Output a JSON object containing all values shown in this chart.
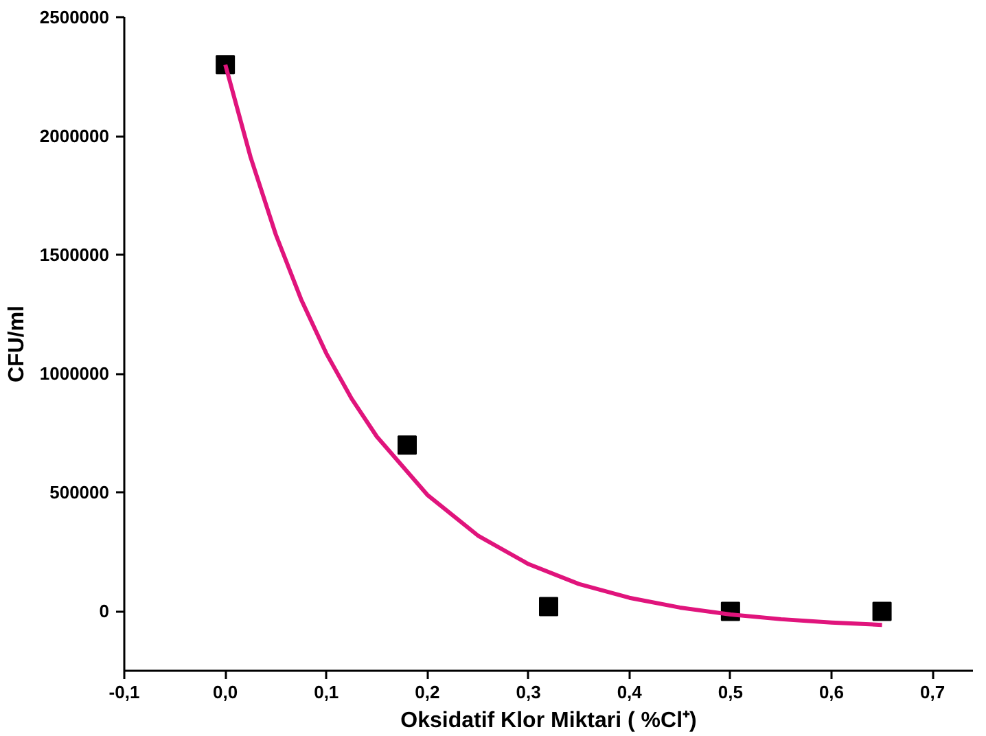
{
  "chart_data": {
    "type": "scatter",
    "xlabel": "Oksidatif Klor Miktari ( %Cl⁺)",
    "ylabel": "CFU/ml",
    "xlim": [
      -0.1,
      0.74
    ],
    "ylim": [
      -250000,
      2500000
    ],
    "xticks": [
      {
        "value": -0.1,
        "label": "-0,1"
      },
      {
        "value": 0.0,
        "label": "0,0"
      },
      {
        "value": 0.1,
        "label": "0,1"
      },
      {
        "value": 0.2,
        "label": "0,2"
      },
      {
        "value": 0.3,
        "label": "0,3"
      },
      {
        "value": 0.4,
        "label": "0,4"
      },
      {
        "value": 0.5,
        "label": "0,5"
      },
      {
        "value": 0.6,
        "label": "0,6"
      },
      {
        "value": 0.7,
        "label": "0,7"
      }
    ],
    "yticks": [
      0,
      500000,
      1000000,
      1500000,
      2000000,
      2500000
    ],
    "grid": false,
    "series": [
      {
        "marker": "square",
        "color": "#000000",
        "x": [
          0.0,
          0.18,
          0.32,
          0.5,
          0.65
        ],
        "values": [
          2300000,
          700000,
          20000,
          0,
          0
        ]
      },
      {
        "type": "line",
        "marker": "none",
        "line_style": "solid",
        "color": "#e0147c",
        "x": [
          0,
          0.025,
          0.05,
          0.075,
          0.1,
          0.125,
          0.15,
          0.2,
          0.25,
          0.3,
          0.35,
          0.4,
          0.45,
          0.5,
          0.55,
          0.6,
          0.65
        ],
        "values": [
          2300000,
          1911000,
          1585000,
          1313000,
          1085000,
          895000,
          735000,
          490000,
          319000,
          199000,
          115000,
          57000,
          16000,
          -13000,
          -33000,
          -47000,
          -57000
        ]
      }
    ]
  }
}
